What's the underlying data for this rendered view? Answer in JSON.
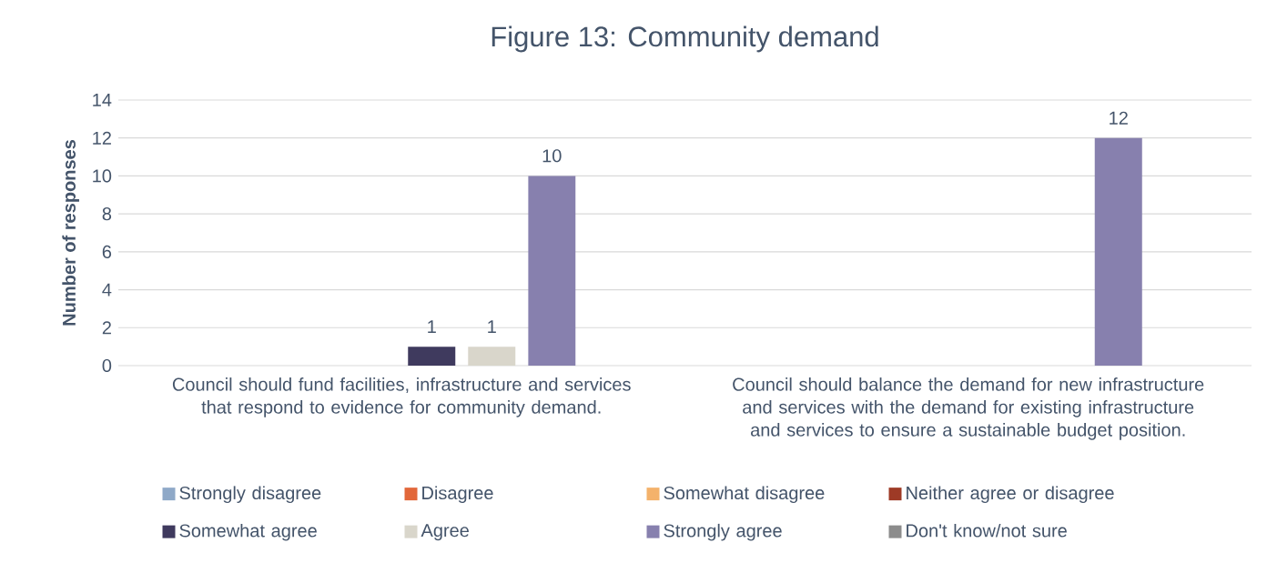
{
  "chart_data": {
    "type": "bar",
    "title": "Figure 13: Community demand",
    "ylabel": "Number of responses",
    "categories": [
      "Council should fund facilities, infrastructure and services that respond to evidence for community demand.",
      "Council should balance the demand for new infrastructure and services with the demand for existing infrastructure and services to ensure a sustainable budget position."
    ],
    "series": [
      {
        "name": "Strongly disagree",
        "color": "#8fa9c8",
        "values": [
          0,
          0
        ],
        "value_labels": [
          null,
          null
        ]
      },
      {
        "name": "Disagree",
        "color": "#e2673a",
        "values": [
          0,
          0
        ],
        "value_labels": [
          null,
          null
        ]
      },
      {
        "name": "Somewhat disagree",
        "color": "#f4b26b",
        "values": [
          0,
          0
        ],
        "value_labels": [
          null,
          null
        ]
      },
      {
        "name": "Neither agree or disagree",
        "color": "#9e3a26",
        "values": [
          0,
          0
        ],
        "value_labels": [
          null,
          null
        ]
      },
      {
        "name": "Somewhat agree",
        "color": "#3f3a5e",
        "values": [
          1,
          0
        ],
        "value_labels": [
          "1",
          null
        ]
      },
      {
        "name": "Agree",
        "color": "#d9d6cb",
        "values": [
          1,
          0
        ],
        "value_labels": [
          "1",
          null
        ]
      },
      {
        "name": "Strongly agree",
        "color": "#8780ae",
        "values": [
          10,
          12
        ],
        "value_labels": [
          "10",
          "12"
        ]
      },
      {
        "name": "Don't know/not sure",
        "color": "#8c8c8c",
        "values": [
          0,
          0
        ],
        "value_labels": [
          null,
          null
        ]
      }
    ],
    "ylim": [
      0,
      14
    ],
    "yticks": [
      0,
      2,
      4,
      6,
      8,
      10,
      12,
      14
    ],
    "grid": "y",
    "legend": "bottom"
  }
}
